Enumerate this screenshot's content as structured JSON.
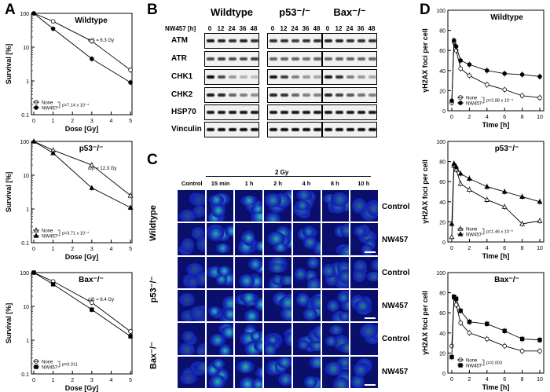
{
  "panels": {
    "A": "A",
    "B": "B",
    "C": "C",
    "D": "D"
  },
  "survival": [
    {
      "title": "Wildtype",
      "ab_text": "α/β = 6.3 Gy",
      "pval": "p=7.14 x 10⁻⁴",
      "open_marker": "circle",
      "filled_marker": "circle",
      "none": [
        100,
        58,
        15,
        2.1
      ],
      "nw": [
        100,
        35,
        4.5,
        0.9
      ]
    },
    {
      "title": "p53⁻/⁻",
      "ab_text": "α/β = 12.3 Gy",
      "pval": "p=3.71 x 10⁻⁴",
      "open_marker": "triangle",
      "filled_marker": "triangle",
      "none": [
        100,
        55,
        20,
        2.5
      ],
      "nw": [
        100,
        45,
        4.2,
        1.1
      ]
    },
    {
      "title": "Bax⁻/⁻",
      "ab_text": "α/β = 6.4 Gy",
      "pval": "p=0.011",
      "open_marker": "circle",
      "filled_marker": "square",
      "none": [
        100,
        55,
        13,
        1.8
      ],
      "nw": [
        100,
        45,
        8,
        1.3
      ]
    }
  ],
  "survival_axes": {
    "x_ticks": [
      "0",
      "1",
      "2",
      "3",
      "4",
      "5"
    ],
    "y_ticks": [
      "100",
      "10",
      "1",
      "0.1"
    ],
    "xlabel": "Dose [Gy]",
    "ylabel": "Survival [%]",
    "legend_none": "None",
    "legend_nw": "NW457"
  },
  "chart_data": [
    {
      "type": "line",
      "title": "Wildtype",
      "xlabel": "Dose [Gy]",
      "ylabel": "Survival [%]",
      "x": [
        0,
        1,
        3,
        5
      ],
      "ylog": true,
      "ylim": [
        0.1,
        100
      ],
      "series": [
        {
          "name": "None",
          "values": [
            100,
            58,
            15,
            2.1
          ]
        },
        {
          "name": "NW457",
          "values": [
            100,
            35,
            4.5,
            0.9
          ]
        }
      ]
    },
    {
      "type": "line",
      "title": "p53⁻/⁻",
      "xlabel": "Dose [Gy]",
      "ylabel": "Survival [%]",
      "x": [
        0,
        1,
        3,
        5
      ],
      "ylog": true,
      "ylim": [
        0.1,
        100
      ],
      "series": [
        {
          "name": "None",
          "values": [
            100,
            55,
            20,
            2.5
          ]
        },
        {
          "name": "NW457",
          "values": [
            100,
            45,
            4.2,
            1.1
          ]
        }
      ]
    },
    {
      "type": "line",
      "title": "Bax⁻/⁻",
      "xlabel": "Dose [Gy]",
      "ylabel": "Survival [%]",
      "x": [
        0,
        1,
        3,
        5
      ],
      "ylog": true,
      "ylim": [
        0.1,
        100
      ],
      "series": [
        {
          "name": "None",
          "values": [
            100,
            55,
            13,
            1.8
          ]
        },
        {
          "name": "NW457",
          "values": [
            100,
            45,
            8,
            1.3
          ]
        }
      ]
    },
    {
      "type": "line",
      "title": "Wildtype",
      "xlabel": "Time [h]",
      "ylabel": "γH2AX foci per cell",
      "x": [
        0,
        0.25,
        0.5,
        1,
        2,
        4,
        6,
        8,
        10
      ],
      "ylim": [
        0,
        100
      ],
      "series": [
        {
          "name": "None",
          "values": [
            8,
            68,
            60,
            42,
            35,
            26,
            21,
            15,
            13
          ]
        },
        {
          "name": "NW457",
          "values": [
            10,
            70,
            64,
            50,
            46,
            40,
            37,
            36,
            34
          ]
        }
      ]
    },
    {
      "type": "line",
      "title": "p53⁻/⁻",
      "xlabel": "Time [h]",
      "ylabel": "γH2AX foci per cell",
      "x": [
        0,
        0.25,
        0.5,
        1,
        2,
        4,
        6,
        8,
        10
      ],
      "ylim": [
        0,
        100
      ],
      "series": [
        {
          "name": "None",
          "values": [
            5,
            76,
            72,
            58,
            52,
            42,
            35,
            18,
            21
          ]
        },
        {
          "name": "NW457",
          "values": [
            18,
            78,
            75,
            68,
            63,
            55,
            50,
            45,
            40
          ]
        }
      ]
    },
    {
      "type": "line",
      "title": "Bax⁻/⁻",
      "xlabel": "Time [h]",
      "ylabel": "γH2AX foci per cell",
      "x": [
        0,
        0.25,
        0.5,
        1,
        2,
        4,
        6,
        8,
        10
      ],
      "ylim": [
        0,
        100
      ],
      "series": [
        {
          "name": "None",
          "values": [
            27,
            75,
            68,
            50,
            40,
            34,
            27,
            22,
            22
          ]
        },
        {
          "name": "NW457",
          "values": [
            16,
            76,
            74,
            62,
            51,
            49,
            42,
            34,
            33
          ]
        }
      ]
    }
  ],
  "foci": [
    {
      "title": "Wildtype",
      "pval": "p=2.88 x 10⁻⁴",
      "open_marker": "circle",
      "filled_marker": "circle",
      "none": [
        8,
        68,
        60,
        42,
        35,
        26,
        21,
        15,
        13
      ],
      "nw": [
        10,
        70,
        64,
        50,
        46,
        40,
        37,
        36,
        34
      ]
    },
    {
      "title": "p53⁻/⁻",
      "pval": "p=1.46 x 10⁻³",
      "open_marker": "triangle",
      "filled_marker": "triangle",
      "none": [
        5,
        76,
        72,
        58,
        52,
        42,
        35,
        18,
        21
      ],
      "nw": [
        18,
        78,
        75,
        68,
        63,
        55,
        50,
        45,
        40
      ]
    },
    {
      "title": "Bax⁻/⁻",
      "pval": "p=0.003",
      "open_marker": "circle",
      "filled_marker": "square",
      "none": [
        27,
        75,
        68,
        50,
        40,
        34,
        27,
        22,
        22
      ],
      "nw": [
        16,
        76,
        74,
        62,
        51,
        49,
        42,
        34,
        33
      ]
    }
  ],
  "foci_axes": {
    "x": [
      0,
      0.25,
      0.5,
      1,
      2,
      4,
      6,
      8,
      10
    ],
    "x_ticks": [
      "0",
      "2",
      "4",
      "6",
      "8",
      "10"
    ],
    "y_ticks": [
      "0",
      "20",
      "40",
      "60",
      "80",
      "100"
    ],
    "xlabel": "Time [h]",
    "ylabel": "γH2AX foci per cell",
    "legend_none": "None",
    "legend_nw": "NW457"
  },
  "western": {
    "treatment_label": "NW457 [h]",
    "groups": [
      "Wildtype",
      "p53⁻/⁻",
      "Bax⁻/⁻"
    ],
    "timepoints": [
      "0",
      "12",
      "24",
      "36",
      "48"
    ],
    "proteins": [
      "ATM",
      "ATR",
      "CHK1",
      "CHK2",
      "HSP70",
      "Vinculin"
    ]
  },
  "micro": {
    "dose": "2 Gy",
    "columns": [
      "Control",
      "15 min",
      "1 h",
      "2 h",
      "4 h",
      "8 h",
      "10 h"
    ],
    "row_labels": [
      "Control",
      "NW457",
      "Control",
      "NW457",
      "Control",
      "NW457"
    ],
    "genotypes": [
      "Wildtype",
      "p53⁻/⁻",
      "Bax⁻/⁻"
    ]
  }
}
